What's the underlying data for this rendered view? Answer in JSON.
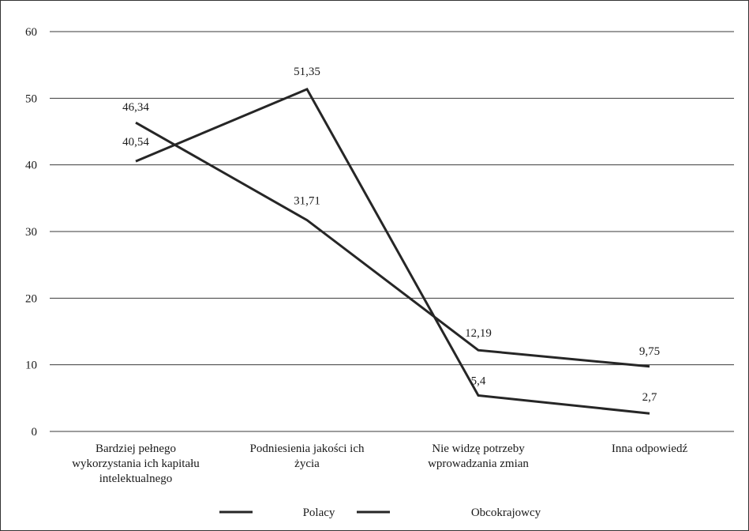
{
  "chart_data": {
    "type": "line",
    "categories": [
      [
        "Bardziej pełnego",
        "wykorzystania ich kapitału",
        "intelektualnego"
      ],
      [
        "Podniesienia jakości ich",
        "życia"
      ],
      [
        "Nie widzę potrzeby",
        "wprowadzania zmian"
      ],
      [
        "Inna odpowiedź"
      ]
    ],
    "series": [
      {
        "name": "Polacy",
        "values": [
          40.54,
          51.35,
          5.4,
          2.7
        ],
        "labels": [
          "40,54",
          "51,35",
          "5,4",
          "2,7"
        ],
        "color": "#262626"
      },
      {
        "name": "Obcokrajowcy",
        "values": [
          46.34,
          31.71,
          12.19,
          9.75
        ],
        "labels": [
          "46,34",
          "31,71",
          "12,19",
          "9,75"
        ],
        "color": "#262626"
      }
    ],
    "ylim": [
      0,
      60
    ],
    "yticks": [
      0,
      10,
      20,
      30,
      40,
      50,
      60
    ],
    "grid": true,
    "legend_position": "bottom"
  }
}
